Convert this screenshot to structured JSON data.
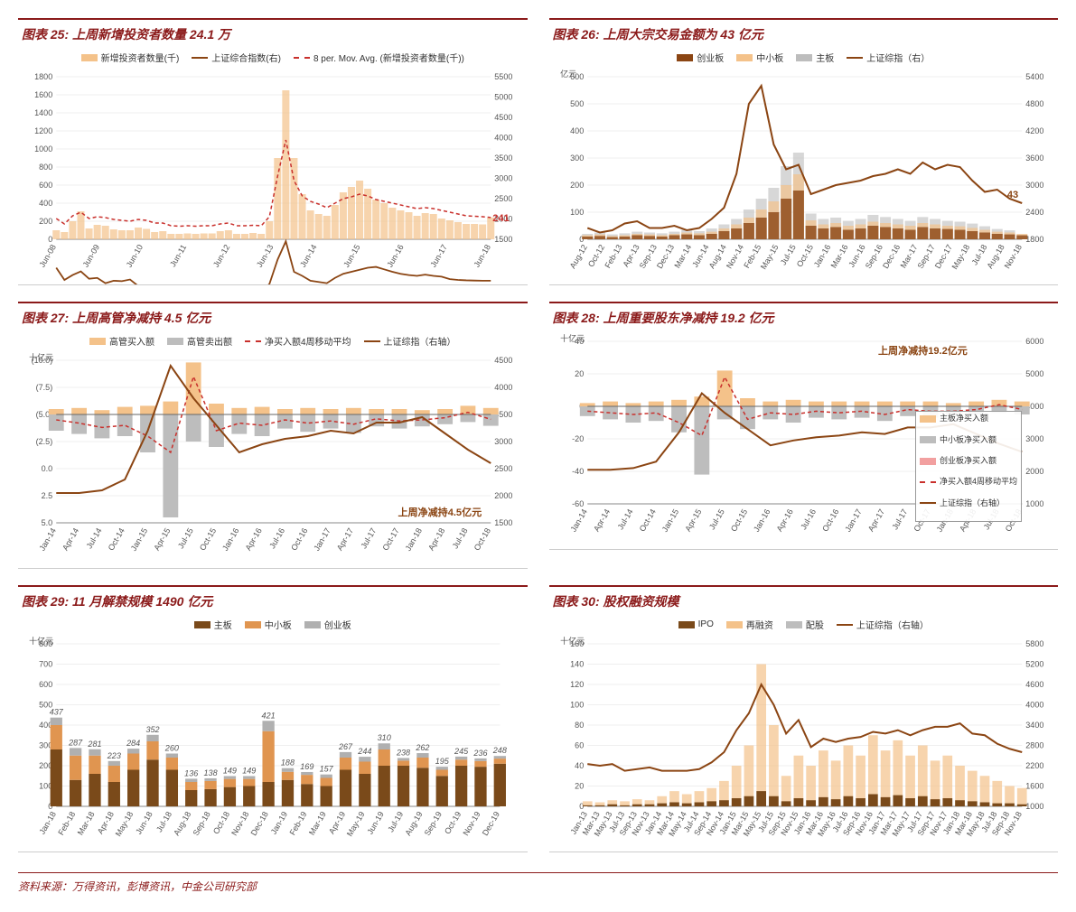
{
  "colors": {
    "title": "#8b1a1a",
    "line_main": "#8b4513",
    "line_red_dash": "#c9302c",
    "bar_light_orange": "#f4c28a",
    "bar_grey": "#bdbdbd",
    "bar_dark_brown": "#7a4a1a",
    "bar_mid_orange": "#e09550",
    "bar_grey2": "#b0b0b0",
    "pink": "#f2a0a0",
    "grid": "#e0e0e0",
    "background": "#ffffff"
  },
  "source_text": "资料来源：万得资讯，彭博资讯，中金公司研究部",
  "chart25": {
    "title": "图表 25: 上周新增投资者数量 24.1 万",
    "y1_label": "",
    "legend": [
      {
        "label": "新增投资者数量(千)",
        "color": "#f4c28a",
        "type": "bar"
      },
      {
        "label": "上证综合指数(右)",
        "color": "#8b4513",
        "type": "line"
      },
      {
        "label": "8 per. Mov. Avg. (新增投资者数量(千))",
        "color": "#c9302c",
        "type": "dash"
      }
    ],
    "y1_ticks": [
      0,
      200,
      400,
      600,
      800,
      1000,
      1200,
      1400,
      1600,
      1800
    ],
    "y2_ticks": [
      1500,
      2000,
      2500,
      3000,
      3500,
      4000,
      4500,
      5000,
      5500
    ],
    "x_ticks": [
      "Jun-08",
      "Jun-09",
      "Jun-10",
      "Jun-11",
      "Jun-12",
      "Jun-13",
      "Jun-14",
      "Jun-15",
      "Jun-16",
      "Jun-17",
      "Jun-18"
    ],
    "line_main": [
      800,
      500,
      620,
      710,
      530,
      550,
      420,
      480,
      470,
      510,
      350,
      340,
      270,
      250,
      220,
      200,
      210,
      200,
      220,
      210,
      250,
      280,
      200,
      220,
      240,
      200,
      400,
      1000,
      1450,
      700,
      600,
      480,
      450,
      420,
      550,
      650,
      700,
      750,
      800,
      820,
      760,
      700,
      650,
      620,
      600,
      630,
      600,
      580,
      520,
      500,
      490,
      485,
      480,
      480
    ],
    "y2_range": [
      1500,
      5500
    ],
    "line_red": [
      230,
      170,
      260,
      300,
      230,
      250,
      240,
      220,
      210,
      200,
      220,
      210,
      180,
      180,
      150,
      145,
      150,
      145,
      150,
      150,
      170,
      180,
      150,
      150,
      155,
      150,
      250,
      700,
      1100,
      650,
      480,
      420,
      390,
      350,
      400,
      450,
      470,
      500,
      480,
      440,
      420,
      400,
      380,
      360,
      340,
      350,
      340,
      320,
      300,
      280,
      260,
      255,
      250,
      241
    ],
    "y1_range": [
      0,
      1800
    ],
    "bars": [
      100,
      80,
      200,
      310,
      120,
      160,
      150,
      110,
      100,
      100,
      130,
      115,
      80,
      90,
      60,
      60,
      65,
      60,
      65,
      65,
      90,
      100,
      60,
      60,
      70,
      60,
      200,
      900,
      1650,
      900,
      500,
      320,
      280,
      260,
      380,
      520,
      580,
      650,
      560,
      440,
      400,
      350,
      320,
      300,
      260,
      290,
      280,
      230,
      210,
      190,
      170,
      170,
      165,
      241
    ],
    "annot": "241"
  },
  "chart26": {
    "title": "图表 26: 上周大宗交易金额为 43 亿元",
    "y1_label": "亿元",
    "legend": [
      {
        "label": "创业板",
        "color": "#8b4513",
        "type": "bar"
      },
      {
        "label": "中小板",
        "color": "#f4c28a",
        "type": "bar"
      },
      {
        "label": "主板",
        "color": "#bdbdbd",
        "type": "bar"
      },
      {
        "label": "上证综指（右）",
        "color": "#8b4513",
        "type": "line"
      }
    ],
    "y1_ticks": [
      0,
      100,
      200,
      300,
      400,
      500,
      600
    ],
    "y2_ticks": [
      1800,
      2400,
      3000,
      3600,
      4200,
      4800,
      5400
    ],
    "x_ticks": [
      "Aug-12",
      "Oct-12",
      "Feb-13",
      "Apr-13",
      "Sep-13",
      "Dec-13",
      "Mar-14",
      "Jun-14",
      "Aug-14",
      "Nov-14",
      "Feb-15",
      "May-15",
      "Jul-15",
      "Oct-15",
      "Jan-16",
      "Mar-16",
      "Jun-16",
      "Sep-16",
      "Dec-16",
      "Mar-17",
      "Sep-17",
      "Dec-17",
      "May-18",
      "Jul-18",
      "Aug-18",
      "Nov-18"
    ],
    "y2_range": [
      1800,
      5400
    ],
    "line": [
      2050,
      1950,
      2000,
      2150,
      2200,
      2050,
      2050,
      2100,
      2000,
      2050,
      2250,
      2500,
      3250,
      4800,
      5200,
      3900,
      3350,
      3450,
      2800,
      2900,
      3000,
      3050,
      3100,
      3200,
      3250,
      3350,
      3250,
      3500,
      3350,
      3450,
      3400,
      3100,
      2850,
      2900,
      2700,
      2600
    ],
    "bar_a": [
      10,
      12,
      8,
      10,
      15,
      12,
      10,
      15,
      18,
      15,
      20,
      30,
      40,
      60,
      80,
      100,
      150,
      180,
      50,
      40,
      45,
      35,
      40,
      50,
      45,
      40,
      35,
      45,
      40,
      38,
      35,
      30,
      25,
      20,
      18,
      15
    ],
    "bar_b": [
      15,
      18,
      12,
      15,
      20,
      18,
      15,
      20,
      25,
      22,
      28,
      40,
      55,
      80,
      110,
      140,
      200,
      240,
      70,
      55,
      60,
      50,
      55,
      65,
      60,
      55,
      50,
      60,
      55,
      50,
      48,
      42,
      35,
      28,
      25,
      20
    ],
    "bar_c": [
      20,
      25,
      18,
      22,
      28,
      25,
      22,
      28,
      35,
      30,
      40,
      55,
      75,
      110,
      150,
      190,
      270,
      320,
      95,
      75,
      80,
      68,
      75,
      90,
      82,
      75,
      68,
      82,
      75,
      68,
      65,
      58,
      48,
      38,
      33,
      8
    ],
    "annot": "43"
  },
  "chart27": {
    "title": "图表 27: 上周高管净减持 4.5 亿元",
    "y1_label": "十亿元",
    "legend": [
      {
        "label": "高管买入额",
        "color": "#f4c28a",
        "type": "bar"
      },
      {
        "label": "高管卖出额",
        "color": "#bdbdbd",
        "type": "bar"
      },
      {
        "label": "净买入额4周移动平均",
        "color": "#c9302c",
        "type": "dash"
      },
      {
        "label": "上证综指（右轴）",
        "color": "#8b4513",
        "type": "line"
      }
    ],
    "y1_ticks": [
      "5.0",
      "2.5",
      "0.0",
      "(2.5)",
      "(5.0)",
      "(7.5)",
      "(10.0)"
    ],
    "y2_ticks": [
      1500,
      2000,
      2500,
      3000,
      3500,
      4000,
      4500
    ],
    "x_ticks": [
      "Jan-14",
      "Apr-14",
      "Jul-14",
      "Oct-14",
      "Jan-15",
      "Apr-15",
      "Jul-15",
      "Oct-15",
      "Jan-16",
      "Apr-16",
      "Jul-16",
      "Oct-16",
      "Jan-17",
      "Apr-17",
      "Jul-17",
      "Oct-17",
      "Jan-18",
      "Apr-18",
      "Jul-18",
      "Oct-18"
    ],
    "y1_range": [
      -10,
      5
    ],
    "y2_range": [
      1500,
      4500
    ],
    "line": [
      2050,
      2050,
      2100,
      2300,
      3200,
      4400,
      3800,
      3300,
      2800,
      2950,
      3050,
      3100,
      3200,
      3150,
      3350,
      3350,
      3450,
      3150,
      2850,
      2600
    ],
    "red": [
      -0.5,
      -0.8,
      -1.2,
      -1.0,
      -2.0,
      -3.5,
      3.5,
      -1.5,
      -0.8,
      -1.0,
      -0.5,
      -0.8,
      -0.6,
      -0.9,
      -0.4,
      -0.6,
      -0.5,
      -0.3,
      0.2,
      -0.45
    ],
    "bars_pos": [
      0.5,
      0.6,
      0.4,
      0.7,
      0.8,
      1.2,
      4.8,
      1.0,
      0.6,
      0.7,
      0.5,
      0.6,
      0.5,
      0.6,
      0.5,
      0.5,
      0.4,
      0.5,
      0.8,
      0.6
    ],
    "bars_neg": [
      -1.5,
      -1.8,
      -2.2,
      -2.0,
      -3.5,
      -9.5,
      -2.5,
      -3.0,
      -1.8,
      -2.0,
      -1.3,
      -1.6,
      -1.3,
      -1.7,
      -1.1,
      -1.3,
      -1.1,
      -0.9,
      -0.7,
      -1.05
    ],
    "annot": "上周净减持4.5亿元"
  },
  "chart28": {
    "title": "图表 28: 上周重要股东净减持 19.2 亿元",
    "y1_label": "十亿元",
    "legend_box": [
      {
        "label": "主板净买入额",
        "color": "#f4c28a",
        "type": "bar"
      },
      {
        "label": "中小板净买入额",
        "color": "#bdbdbd",
        "type": "bar"
      },
      {
        "label": "创业板净买入额",
        "color": "#f2a0a0",
        "type": "bar"
      },
      {
        "label": "净买入额4周移动平均",
        "color": "#c9302c",
        "type": "dash"
      },
      {
        "label": "上证综指（右轴）",
        "color": "#8b4513",
        "type": "line"
      }
    ],
    "y1_ticks": [
      -60,
      -40,
      -20,
      0,
      20,
      40
    ],
    "y2_ticks": [
      1000,
      2000,
      3000,
      4000,
      5000,
      6000
    ],
    "x_ticks": [
      "Jan-14",
      "Apr-14",
      "Jul-14",
      "Oct-14",
      "Jan-15",
      "Apr-15",
      "Jul-15",
      "Oct-15",
      "Jan-16",
      "Apr-16",
      "Jul-16",
      "Oct-16",
      "Jan-17",
      "Apr-17",
      "Jul-17",
      "Oct-17",
      "Jan-18",
      "Apr-18",
      "Jul-18",
      "Oct-18"
    ],
    "y1_range": [
      -60,
      40
    ],
    "y2_range": [
      1000,
      6000
    ],
    "line": [
      2050,
      2050,
      2100,
      2300,
      3200,
      4400,
      3800,
      3300,
      2800,
      2950,
      3050,
      3100,
      3200,
      3150,
      3350,
      3350,
      3450,
      3150,
      2850,
      2600
    ],
    "red": [
      -3,
      -4,
      -5,
      -4,
      -10,
      -18,
      18,
      -8,
      -4,
      -5,
      -3,
      -4,
      -3,
      -5,
      -2,
      -3,
      -3,
      -2,
      1,
      -1.92
    ],
    "bars_a": [
      2,
      3,
      2,
      3,
      4,
      6,
      22,
      5,
      3,
      4,
      3,
      3,
      3,
      3,
      3,
      3,
      2,
      3,
      4,
      3
    ],
    "bars_b": [
      -6,
      -8,
      -10,
      -9,
      -16,
      -42,
      -8,
      -14,
      -8,
      -10,
      -7,
      -8,
      -7,
      -9,
      -6,
      -7,
      -6,
      -5,
      -4,
      -5
    ],
    "annot": "上周净减持19.2亿元"
  },
  "chart29": {
    "title": "图表 29: 11 月解禁规模 1490 亿元",
    "y1_label": "十亿元",
    "legend": [
      {
        "label": "主板",
        "color": "#7a4a1a",
        "type": "bar"
      },
      {
        "label": "中小板",
        "color": "#e09550",
        "type": "bar"
      },
      {
        "label": "创业板",
        "color": "#b0b0b0",
        "type": "bar"
      }
    ],
    "y1_ticks": [
      0,
      100,
      200,
      300,
      400,
      500,
      600,
      700,
      800
    ],
    "x_ticks": [
      "Jan-18",
      "Feb-18",
      "Mar-18",
      "Apr-18",
      "May-18",
      "Jun-18",
      "Jul-18",
      "Aug-18",
      "Sep-18",
      "Oct-18",
      "Nov-18",
      "Dec-18",
      "Jan-19",
      "Feb-19",
      "Mar-19",
      "Apr-19",
      "May-19",
      "Jun-19",
      "Jul-19",
      "Aug-19",
      "Sep-19",
      "Oct-19",
      "Nov-19",
      "Dec-19"
    ],
    "y1_range": [
      0,
      800
    ],
    "data_labels": [
      437,
      287,
      281,
      223,
      284,
      352,
      260,
      136,
      138,
      149,
      149,
      421,
      188,
      169,
      157,
      267,
      244,
      310,
      238,
      262,
      195,
      245,
      236,
      248
    ],
    "main": [
      280,
      130,
      160,
      120,
      180,
      230,
      180,
      80,
      85,
      95,
      100,
      120,
      130,
      110,
      100,
      180,
      160,
      200,
      200,
      190,
      150,
      200,
      195,
      210
    ],
    "mid": [
      120,
      120,
      90,
      80,
      80,
      90,
      60,
      40,
      40,
      40,
      35,
      250,
      40,
      45,
      40,
      60,
      60,
      80,
      25,
      50,
      30,
      30,
      28,
      25
    ],
    "gem": [
      37,
      37,
      31,
      23,
      24,
      32,
      20,
      16,
      13,
      14,
      14,
      51,
      18,
      14,
      17,
      27,
      24,
      30,
      13,
      22,
      15,
      15,
      13,
      13
    ]
  },
  "chart30": {
    "title": "图表 30: 股权融资规模",
    "y1_label": "十亿元",
    "legend": [
      {
        "label": "IPO",
        "color": "#7a4a1a",
        "type": "bar"
      },
      {
        "label": "再融资",
        "color": "#f4c28a",
        "type": "bar"
      },
      {
        "label": "配股",
        "color": "#bdbdbd",
        "type": "bar"
      },
      {
        "label": "上证综指（右轴）",
        "color": "#8b4513",
        "type": "line"
      }
    ],
    "y1_ticks": [
      0,
      20,
      40,
      60,
      80,
      100,
      120,
      140,
      160
    ],
    "y2_ticks": [
      1000,
      1600,
      2200,
      2800,
      3400,
      4000,
      4600,
      5200,
      5800
    ],
    "x_ticks": [
      "Jan-13",
      "Mar-13",
      "May-13",
      "Jul-13",
      "Sep-13",
      "Nov-13",
      "Jan-14",
      "Mar-14",
      "May-14",
      "Jul-14",
      "Sep-14",
      "Nov-14",
      "Jan-15",
      "Mar-15",
      "May-15",
      "Jul-15",
      "Sep-15",
      "Nov-15",
      "Jan-16",
      "Mar-16",
      "May-16",
      "Jul-16",
      "Sep-16",
      "Nov-16",
      "Jan-17",
      "Mar-17",
      "May-17",
      "Jul-17",
      "Sep-17",
      "Nov-17",
      "Jan-18",
      "Mar-18",
      "May-18",
      "Jul-18",
      "Sep-18",
      "Nov-18"
    ],
    "y1_range": [
      0,
      160
    ],
    "y2_range": [
      1000,
      5800
    ],
    "line": [
      2250,
      2200,
      2250,
      2050,
      2100,
      2150,
      2050,
      2050,
      2050,
      2100,
      2300,
      2600,
      3250,
      3750,
      4600,
      4000,
      3150,
      3550,
      2750,
      3000,
      2900,
      3000,
      3050,
      3200,
      3150,
      3250,
      3100,
      3250,
      3350,
      3350,
      3450,
      3150,
      3100,
      2850,
      2700,
      2600
    ],
    "bars_a": [
      5,
      4,
      6,
      5,
      7,
      6,
      10,
      15,
      12,
      15,
      18,
      25,
      40,
      60,
      140,
      80,
      30,
      50,
      40,
      55,
      45,
      60,
      50,
      70,
      55,
      65,
      50,
      60,
      45,
      50,
      40,
      35,
      30,
      25,
      20,
      18
    ],
    "bars_b": [
      1,
      1,
      2,
      1,
      2,
      2,
      3,
      4,
      3,
      4,
      5,
      6,
      8,
      10,
      15,
      10,
      5,
      8,
      6,
      9,
      7,
      10,
      8,
      12,
      9,
      11,
      8,
      10,
      7,
      8,
      6,
      5,
      4,
      3,
      3,
      2
    ]
  }
}
